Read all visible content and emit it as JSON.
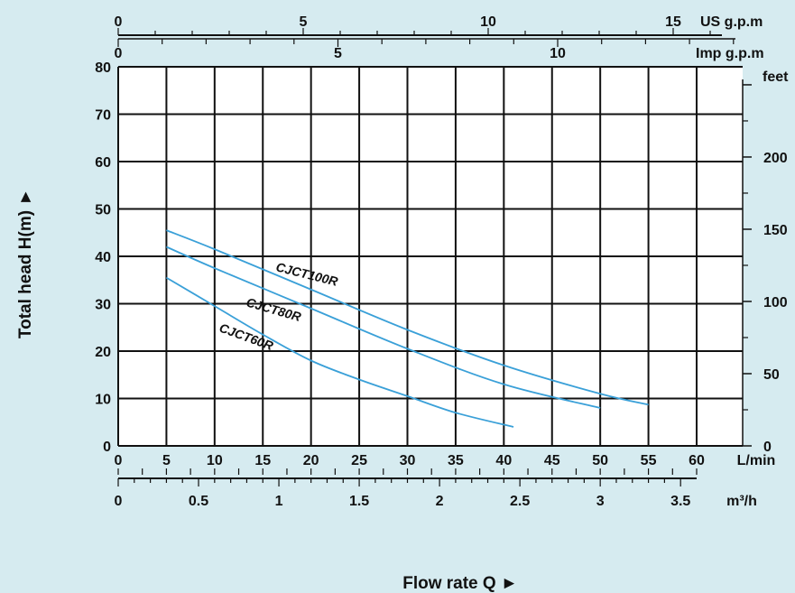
{
  "chart_data": {
    "type": "line",
    "title": "",
    "xlabel": "Flow rate Q ►",
    "ylabel": "Total head H(m) ►",
    "xlim": [
      0,
      60
    ],
    "ylim": [
      0,
      80
    ],
    "grid": true,
    "legend": "inline labels on curves",
    "colors": {
      "background": "#d6ebf0",
      "plot": "#ffffff",
      "grid": "#111111",
      "curve": "#3aa0d8"
    },
    "axes": {
      "bottom_lmin": {
        "unit": "L/min",
        "ticks": [
          0,
          5,
          10,
          15,
          20,
          25,
          30,
          35,
          40,
          45,
          50,
          55,
          60
        ]
      },
      "bottom_m3h": {
        "unit": "m³/h",
        "ticks": [
          0,
          0.5,
          1,
          1.5,
          2,
          2.5,
          3,
          3.5
        ],
        "tick_labels": [
          "0",
          "0.5",
          "1",
          "1.5",
          "2",
          "2.5",
          "3",
          "3.5"
        ]
      },
      "top_usgpm": {
        "unit": "US g.p.m",
        "ticks": [
          0,
          5,
          10,
          15
        ]
      },
      "top_impgpm": {
        "unit": "Imp g.p.m",
        "ticks": [
          0,
          5,
          10
        ]
      },
      "left_m": {
        "ticks": [
          0,
          10,
          20,
          30,
          40,
          50,
          60,
          70,
          80
        ]
      },
      "right_feet": {
        "unit": "feet",
        "ticks": [
          0,
          50,
          100,
          150,
          200
        ]
      }
    },
    "series": [
      {
        "name": "CJCT100R",
        "x": [
          5,
          10,
          20,
          30,
          40,
          50,
          55
        ],
        "y": [
          45.5,
          41.5,
          33,
          24.5,
          17,
          11,
          8.7
        ]
      },
      {
        "name": "CJCT80R",
        "x": [
          5,
          10,
          20,
          30,
          40,
          50
        ],
        "y": [
          42,
          37.5,
          29,
          20.5,
          13,
          8
        ]
      },
      {
        "name": "CJCT60R",
        "x": [
          5,
          10,
          15,
          20,
          25,
          30,
          35,
          41
        ],
        "y": [
          35.5,
          29.5,
          23.5,
          18,
          14,
          10.5,
          7,
          4
        ]
      }
    ]
  }
}
